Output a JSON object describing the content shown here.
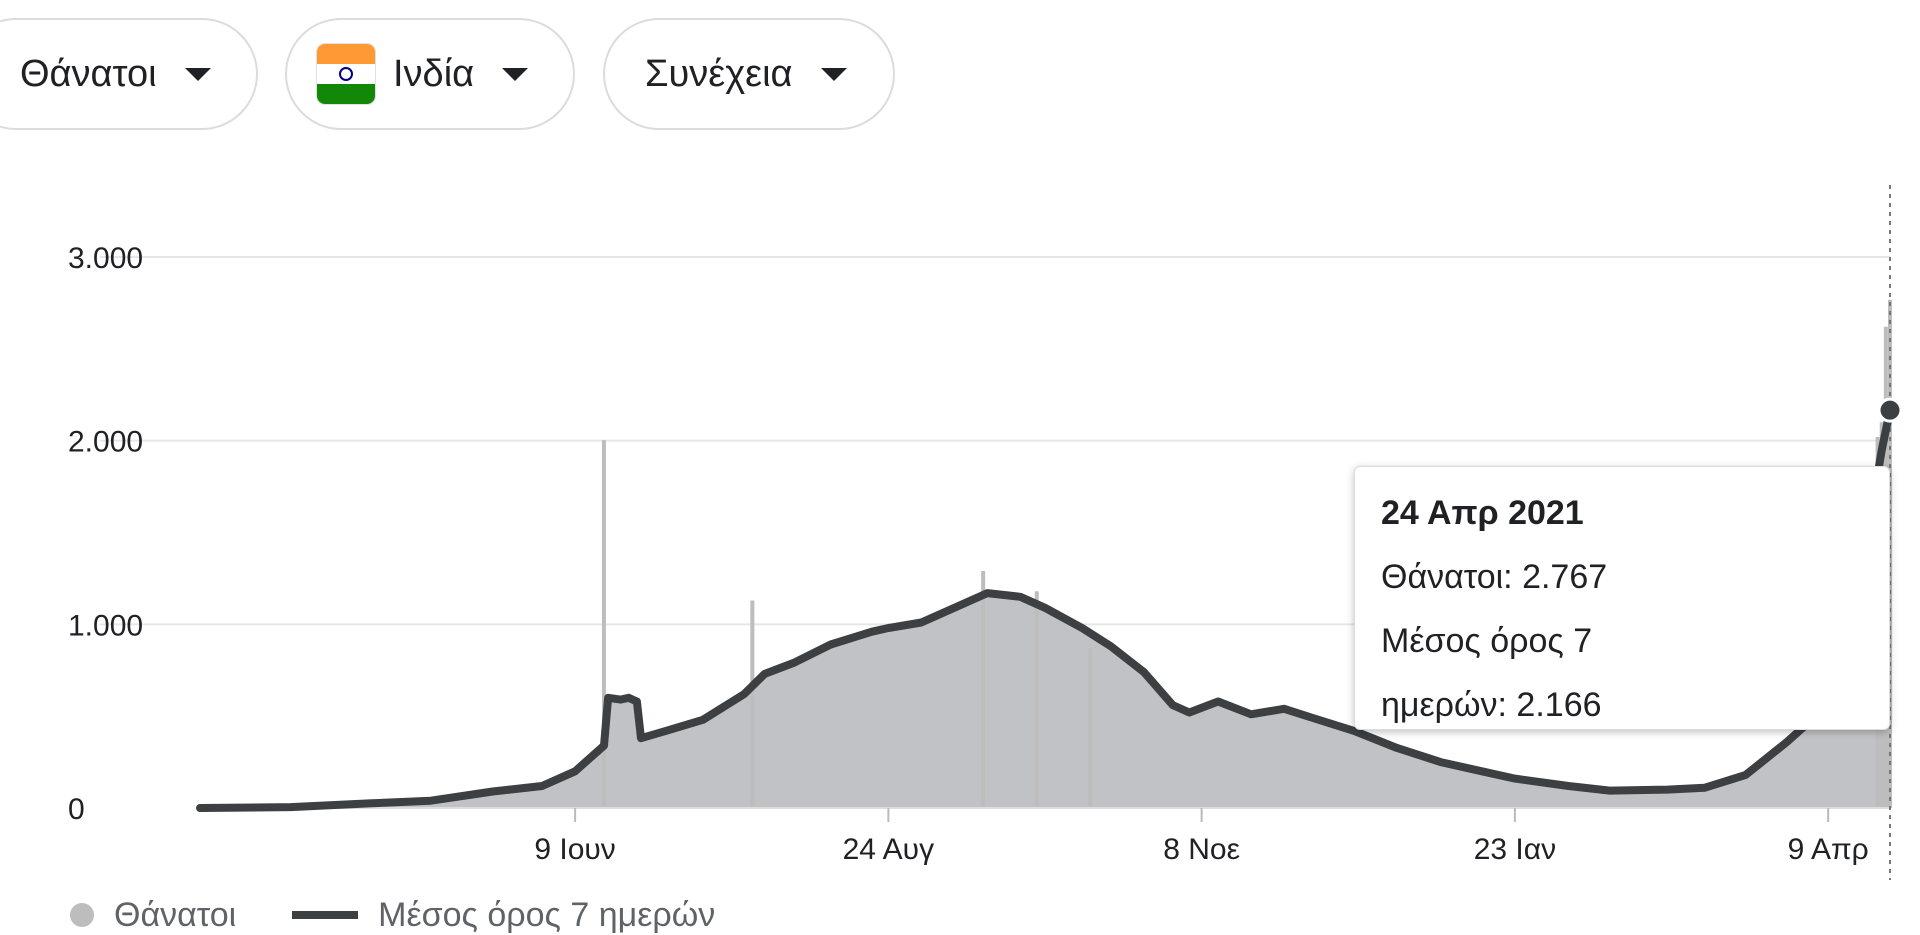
{
  "controls": {
    "metric": "Θάνατοι",
    "country": "Ινδία",
    "mode": "Συνέχεια"
  },
  "colors": {
    "bars": "#bdbdbd",
    "area": "#c1c2c5",
    "line": "#3c4043",
    "grid": "#e6e6e6"
  },
  "tooltip": {
    "date": "24 Απρ 2021",
    "deaths": "Θάνατοι: 2.767",
    "avg_line1": "Μέσος όρος 7",
    "avg_line2": "ημερών: 2.166"
  },
  "legend": {
    "deaths": "Θάνατοι",
    "avg": "Μέσος όρος 7 ημερών"
  },
  "chart_data": {
    "type": "bar",
    "title": "",
    "xlabel": "",
    "ylabel": "",
    "ylim": [
      0,
      3000
    ],
    "y_ticks": [
      {
        "value": 0,
        "label": "0"
      },
      {
        "value": 1000,
        "label": "1.000"
      },
      {
        "value": 2000,
        "label": "2.000"
      },
      {
        "value": 3000,
        "label": "3.000"
      }
    ],
    "x_range": [
      "2020-03-10",
      "2021-04-24"
    ],
    "x_ticks": [
      {
        "date": "2020-06-09",
        "label": "9 Ιουν"
      },
      {
        "date": "2020-08-24",
        "label": "24 Αυγ"
      },
      {
        "date": "2020-11-08",
        "label": "8 Νοε"
      },
      {
        "date": "2021-01-23",
        "label": "23 Ιαν"
      },
      {
        "date": "2021-04-09",
        "label": "9 Απρ"
      }
    ],
    "series": [
      {
        "name": "Μέσος όρος 7 ημερών",
        "kind": "line",
        "points": [
          [
            "2020-03-10",
            0
          ],
          [
            "2020-04-01",
            5
          ],
          [
            "2020-04-20",
            25
          ],
          [
            "2020-05-05",
            40
          ],
          [
            "2020-05-20",
            90
          ],
          [
            "2020-06-01",
            120
          ],
          [
            "2020-06-09",
            200
          ],
          [
            "2020-06-13",
            280
          ],
          [
            "2020-06-16",
            340
          ],
          [
            "2020-06-17",
            600
          ],
          [
            "2020-06-20",
            590
          ],
          [
            "2020-06-22",
            600
          ],
          [
            "2020-06-24",
            580
          ],
          [
            "2020-06-25",
            380
          ],
          [
            "2020-07-01",
            420
          ],
          [
            "2020-07-10",
            480
          ],
          [
            "2020-07-20",
            620
          ],
          [
            "2020-07-25",
            730
          ],
          [
            "2020-08-01",
            790
          ],
          [
            "2020-08-10",
            890
          ],
          [
            "2020-08-20",
            960
          ],
          [
            "2020-08-24",
            980
          ],
          [
            "2020-09-01",
            1010
          ],
          [
            "2020-09-10",
            1100
          ],
          [
            "2020-09-17",
            1170
          ],
          [
            "2020-09-25",
            1150
          ],
          [
            "2020-10-01",
            1090
          ],
          [
            "2020-10-10",
            980
          ],
          [
            "2020-10-17",
            880
          ],
          [
            "2020-10-25",
            740
          ],
          [
            "2020-11-01",
            560
          ],
          [
            "2020-11-05",
            520
          ],
          [
            "2020-11-12",
            580
          ],
          [
            "2020-11-20",
            510
          ],
          [
            "2020-11-28",
            540
          ],
          [
            "2020-12-05",
            490
          ],
          [
            "2020-12-15",
            420
          ],
          [
            "2020-12-25",
            330
          ],
          [
            "2021-01-05",
            250
          ],
          [
            "2021-01-15",
            200
          ],
          [
            "2021-01-23",
            160
          ],
          [
            "2021-02-05",
            120
          ],
          [
            "2021-02-15",
            95
          ],
          [
            "2021-03-01",
            100
          ],
          [
            "2021-03-10",
            110
          ],
          [
            "2021-03-20",
            180
          ],
          [
            "2021-03-30",
            360
          ],
          [
            "2021-04-05",
            480
          ],
          [
            "2021-04-10",
            700
          ],
          [
            "2021-04-15",
            1050
          ],
          [
            "2021-04-19",
            1550
          ],
          [
            "2021-04-22",
            1950
          ],
          [
            "2021-04-24",
            2166
          ]
        ]
      },
      {
        "name": "Θάνατοι",
        "kind": "bar",
        "spikes": [
          [
            "2020-06-16",
            2003
          ],
          [
            "2020-07-22",
            1130
          ],
          [
            "2020-09-16",
            1290
          ],
          [
            "2020-09-29",
            1180
          ],
          [
            "2020-10-12",
            870
          ],
          [
            "2021-04-21",
            2020
          ],
          [
            "2021-04-22",
            2100
          ],
          [
            "2021-04-23",
            2620
          ],
          [
            "2021-04-24",
            2767
          ]
        ]
      }
    ],
    "highlight": {
      "date": "2021-04-24",
      "value": 2166
    },
    "legend_position": "bottom-left",
    "grid": true
  }
}
